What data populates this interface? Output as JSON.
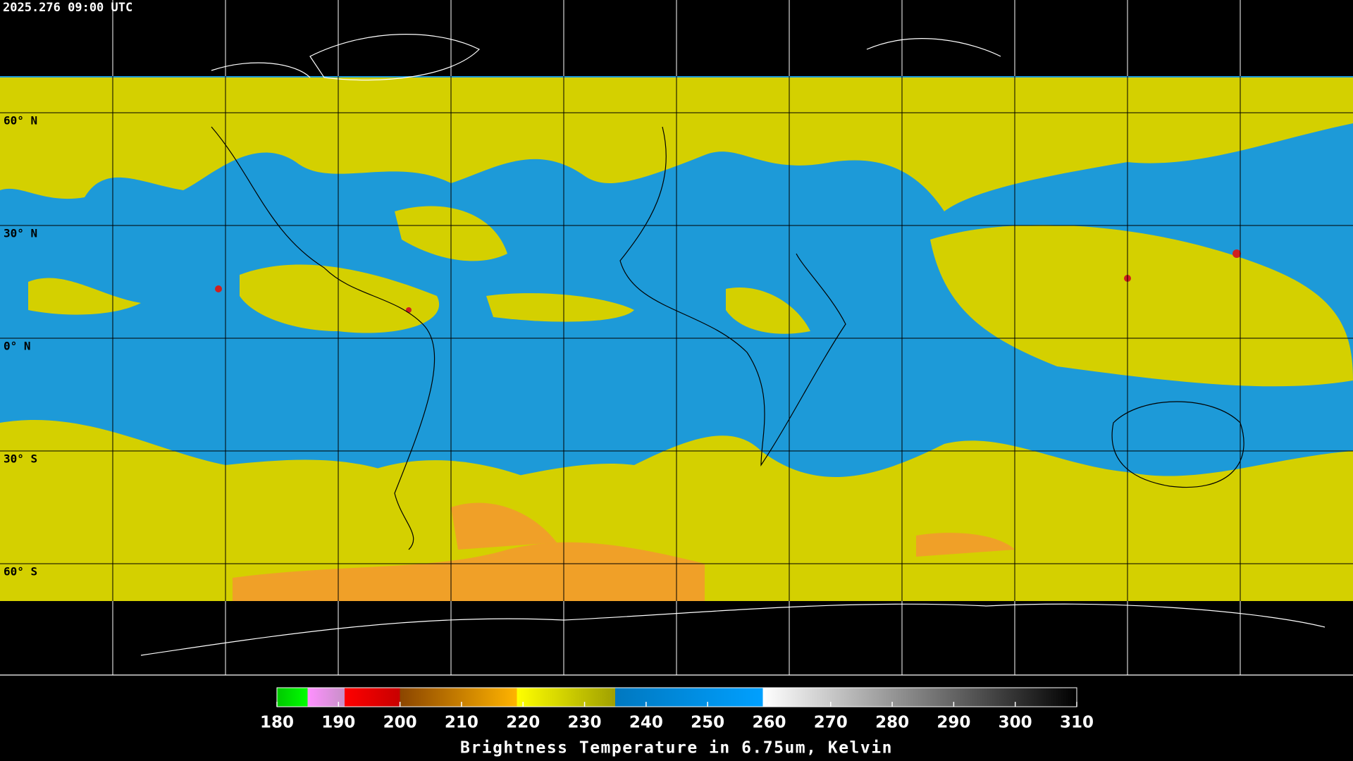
{
  "timestamp": "2025.276 09:00 UTC",
  "lat_lines": [
    {
      "value": 60,
      "label": "60° N"
    },
    {
      "value": 30,
      "label": "30° N"
    },
    {
      "value": 0,
      "label": "0° N"
    },
    {
      "value": -30,
      "label": "30° S"
    },
    {
      "value": -60,
      "label": "60° S"
    }
  ],
  "colorbar": {
    "title": "Brightness Temperature in 6.75um, Kelvin",
    "range": [
      180,
      310
    ],
    "ticks": [
      180,
      190,
      200,
      210,
      220,
      230,
      240,
      250,
      260,
      270,
      280,
      290,
      300,
      310
    ],
    "stops": [
      {
        "value": 180,
        "color": "#00c800"
      },
      {
        "value": 185,
        "color": "#00ff00"
      },
      {
        "value": 185,
        "color": "#ff90ff"
      },
      {
        "value": 191,
        "color": "#c890c8"
      },
      {
        "value": 191,
        "color": "#ff0000"
      },
      {
        "value": 200,
        "color": "#c80000"
      },
      {
        "value": 200,
        "color": "#8b4500"
      },
      {
        "value": 219,
        "color": "#ffb400"
      },
      {
        "value": 219,
        "color": "#ffff00"
      },
      {
        "value": 235,
        "color": "#a0a000"
      },
      {
        "value": 235,
        "color": "#0078c0"
      },
      {
        "value": 259,
        "color": "#00a0ff"
      },
      {
        "value": 259,
        "color": "#ffffff"
      },
      {
        "value": 310,
        "color": "#000000"
      }
    ]
  }
}
